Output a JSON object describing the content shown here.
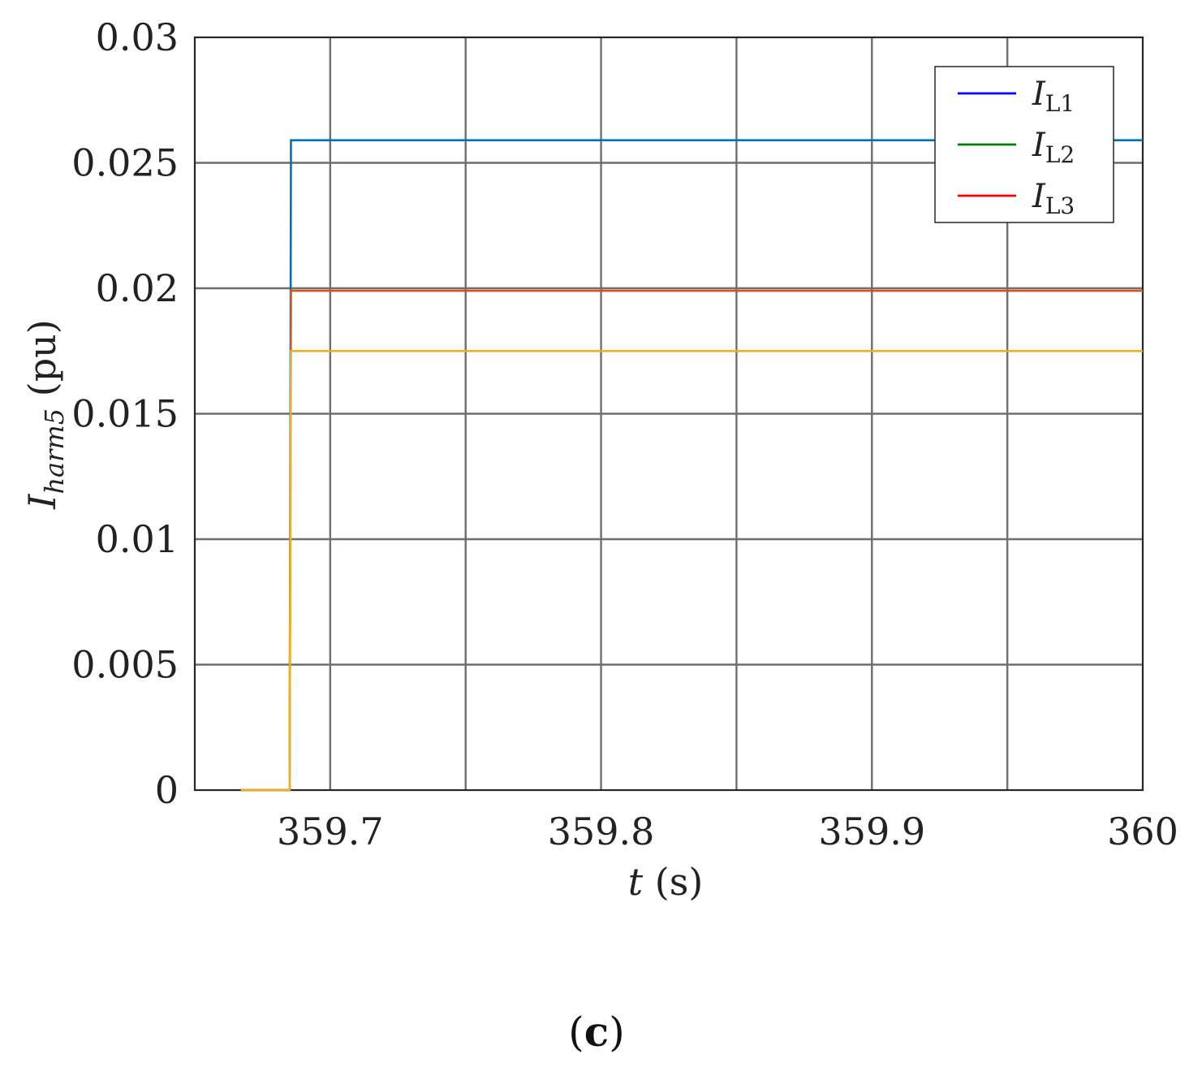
{
  "chart_data": {
    "type": "line",
    "xlabel": {
      "main": "t",
      "unit": " (s)"
    },
    "ylabel": {
      "main": "I",
      "sub": "harm5",
      "unit": " (pu)"
    },
    "xlim": [
      359.65,
      360
    ],
    "ylim": [
      0,
      0.03
    ],
    "x_ticks": [
      359.7,
      359.8,
      359.9,
      360
    ],
    "x_tick_labels": [
      "359.7",
      "359.8",
      "359.9",
      "360"
    ],
    "x_minor_grid": [
      359.75,
      359.85,
      359.95
    ],
    "y_ticks": [
      0,
      0.005,
      0.01,
      0.015,
      0.02,
      0.025,
      0.03
    ],
    "y_tick_labels": [
      "0",
      "0.005",
      "0.01",
      "0.015",
      "0.02",
      "0.025",
      "0.03"
    ],
    "grid": true,
    "legend_position": "top-right",
    "legend": [
      {
        "main": "I",
        "sub": "L1",
        "color": "#0000ff"
      },
      {
        "main": "I",
        "sub": "L2",
        "color": "#008000"
      },
      {
        "main": "I",
        "sub": "L3",
        "color": "#ff0000"
      }
    ],
    "series": [
      {
        "color": "#0072bd",
        "x": [
          359.667,
          359.685,
          359.6855,
          360
        ],
        "y": [
          0,
          0,
          0.0259,
          0.0259
        ]
      },
      {
        "color": "#d95319",
        "x": [
          359.667,
          359.685,
          359.6855,
          360
        ],
        "y": [
          0,
          0,
          0.0199,
          0.0199
        ]
      },
      {
        "color": "#edb120",
        "x": [
          359.667,
          359.685,
          359.6855,
          360
        ],
        "y": [
          0,
          0,
          0.0175,
          0.0175
        ]
      }
    ]
  },
  "panel_label": {
    "open": "(",
    "letter": "c",
    "close": ")"
  }
}
